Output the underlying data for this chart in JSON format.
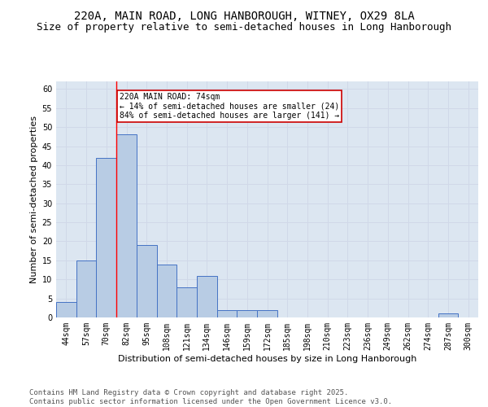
{
  "title1": "220A, MAIN ROAD, LONG HANBOROUGH, WITNEY, OX29 8LA",
  "title2": "Size of property relative to semi-detached houses in Long Hanborough",
  "xlabel": "Distribution of semi-detached houses by size in Long Hanborough",
  "ylabel": "Number of semi-detached properties",
  "categories": [
    "44sqm",
    "57sqm",
    "70sqm",
    "82sqm",
    "95sqm",
    "108sqm",
    "121sqm",
    "134sqm",
    "146sqm",
    "159sqm",
    "172sqm",
    "185sqm",
    "198sqm",
    "210sqm",
    "223sqm",
    "236sqm",
    "249sqm",
    "262sqm",
    "274sqm",
    "287sqm",
    "300sqm"
  ],
  "bar_values": [
    4,
    15,
    42,
    48,
    19,
    14,
    8,
    11,
    2,
    2,
    2,
    0,
    0,
    0,
    0,
    0,
    0,
    0,
    0,
    1,
    0
  ],
  "bar_color": "#b8cce4",
  "bar_edge_color": "#4472c4",
  "grid_color": "#d0d8e8",
  "background_color": "#dce6f1",
  "red_line_x": 2.5,
  "annotation_text": "220A MAIN ROAD: 74sqm\n← 14% of semi-detached houses are smaller (24)\n84% of semi-detached houses are larger (141) →",
  "annotation_box_color": "#ffffff",
  "annotation_box_edge": "#cc0000",
  "ylim": [
    0,
    62
  ],
  "yticks": [
    0,
    5,
    10,
    15,
    20,
    25,
    30,
    35,
    40,
    45,
    50,
    55,
    60
  ],
  "footer": "Contains HM Land Registry data © Crown copyright and database right 2025.\nContains public sector information licensed under the Open Government Licence v3.0.",
  "title1_fontsize": 10,
  "title2_fontsize": 9,
  "axis_label_fontsize": 8,
  "tick_fontsize": 7,
  "footer_fontsize": 6.5,
  "annot_fontsize": 7
}
